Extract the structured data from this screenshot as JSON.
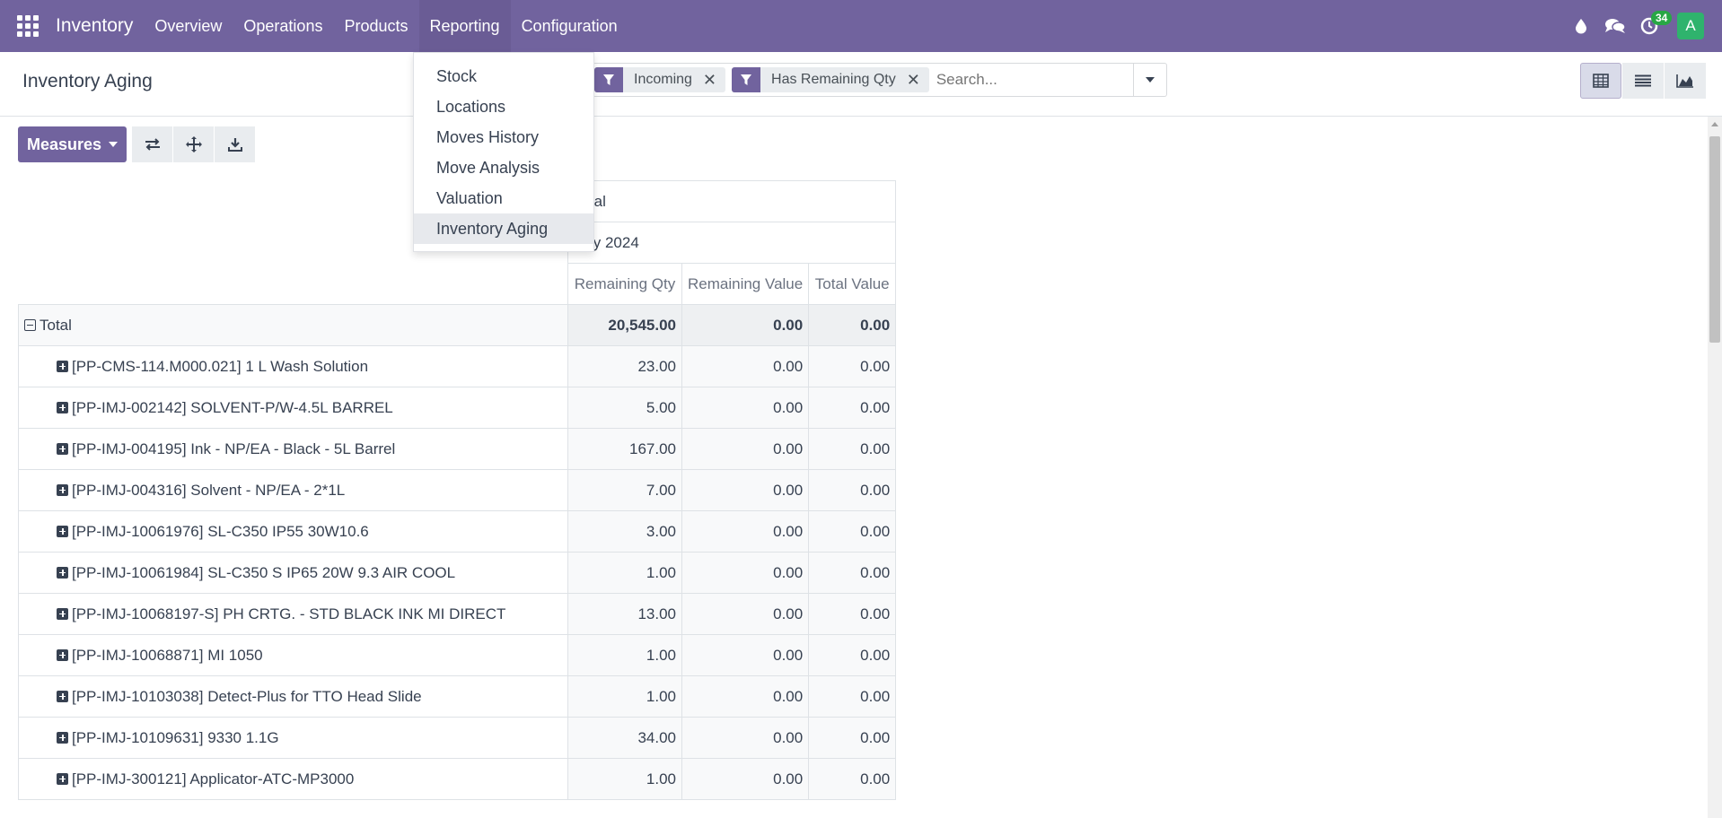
{
  "navbar": {
    "app_name": "Inventory",
    "menu": [
      "Overview",
      "Operations",
      "Products",
      "Reporting",
      "Configuration"
    ],
    "activity_count": "34",
    "avatar_letter": "A",
    "color": "#71639e"
  },
  "control_panel": {
    "title": "Inventory Aging",
    "facets": [
      {
        "label": "Incoming",
        "icon": "filter-icon"
      },
      {
        "label": "Has Remaining Qty",
        "icon": "filter-icon"
      }
    ],
    "search_placeholder": "Search...",
    "views": [
      "pivot-view",
      "list-view",
      "graph-view"
    ],
    "active_view": "pivot-view"
  },
  "actions": {
    "measures_label": "Measures"
  },
  "reporting_menu": {
    "items": [
      "Stock",
      "Locations",
      "Moves History",
      "Move Analysis",
      "Valuation",
      "Inventory Aging"
    ],
    "active": "Inventory Aging"
  },
  "pivot": {
    "col_group_total": "Total",
    "col_group_period": "July 2024",
    "measures": [
      "Remaining Qty",
      "Remaining Value",
      "Total Value"
    ],
    "total_row": {
      "label": "Total",
      "values": [
        "20,545.00",
        "0.00",
        "0.00"
      ]
    },
    "rows": [
      {
        "label": "[PP-CMS-114.M000.021] 1 L Wash Solution",
        "values": [
          "23.00",
          "0.00",
          "0.00"
        ]
      },
      {
        "label": "[PP-IMJ-002142] SOLVENT-P/W-4.5L BARREL",
        "values": [
          "5.00",
          "0.00",
          "0.00"
        ]
      },
      {
        "label": "[PP-IMJ-004195] Ink - NP/EA - Black - 5L Barrel",
        "values": [
          "167.00",
          "0.00",
          "0.00"
        ]
      },
      {
        "label": "[PP-IMJ-004316] Solvent - NP/EA - 2*1L",
        "values": [
          "7.00",
          "0.00",
          "0.00"
        ]
      },
      {
        "label": "[PP-IMJ-10061976] SL-C350 IP55 30W10.6",
        "values": [
          "3.00",
          "0.00",
          "0.00"
        ]
      },
      {
        "label": "[PP-IMJ-10061984] SL-C350 S IP65 20W 9.3 AIR COOL",
        "values": [
          "1.00",
          "0.00",
          "0.00"
        ]
      },
      {
        "label": "[PP-IMJ-10068197-S] PH CRTG. - STD BLACK INK MI DIRECT",
        "values": [
          "13.00",
          "0.00",
          "0.00"
        ]
      },
      {
        "label": "[PP-IMJ-10068871] MI 1050",
        "values": [
          "1.00",
          "0.00",
          "0.00"
        ]
      },
      {
        "label": "[PP-IMJ-10103038] Detect-Plus for TTO Head Slide",
        "values": [
          "1.00",
          "0.00",
          "0.00"
        ]
      },
      {
        "label": "[PP-IMJ-10109631] 9330 1.1G",
        "values": [
          "34.00",
          "0.00",
          "0.00"
        ]
      },
      {
        "label": "[PP-IMJ-300121] Applicator-ATC-MP3000",
        "values": [
          "1.00",
          "0.00",
          "0.00"
        ]
      }
    ]
  }
}
